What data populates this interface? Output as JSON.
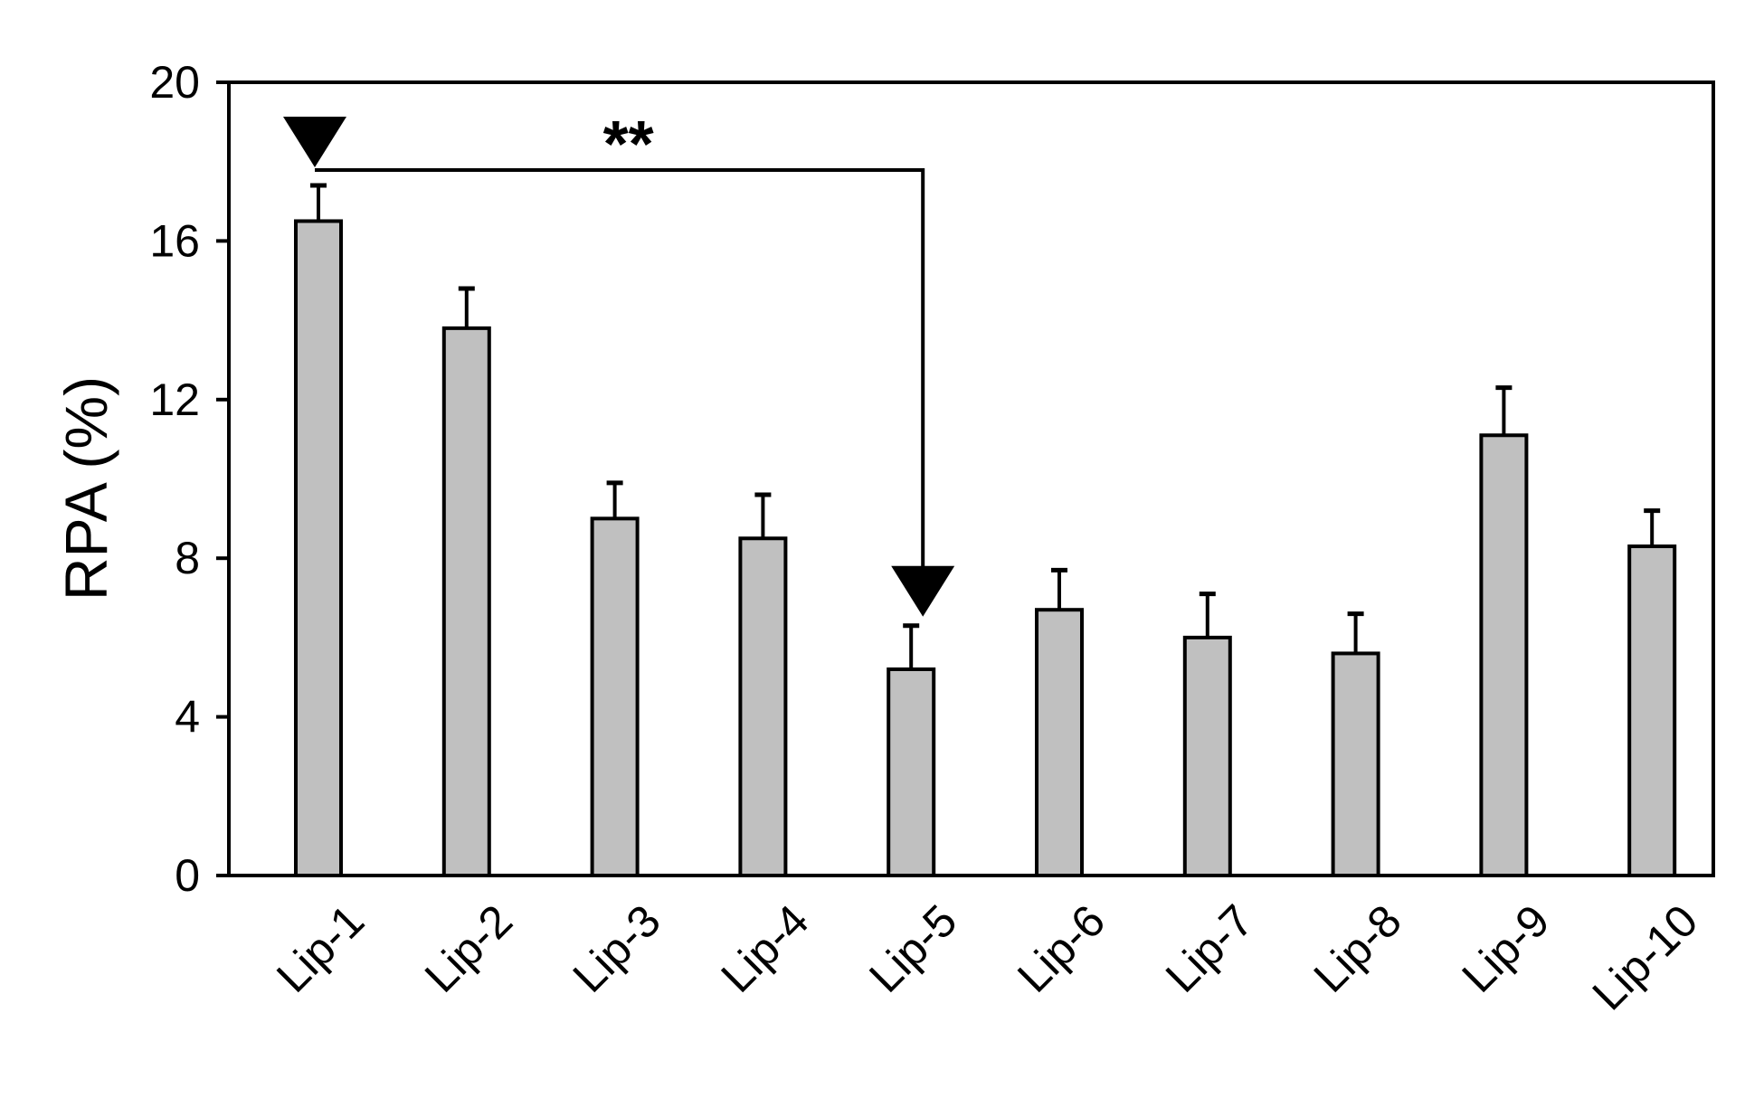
{
  "chart_data": {
    "type": "bar",
    "title": "",
    "xlabel": "",
    "ylabel": "RPA (%)",
    "ylim": [
      0,
      20
    ],
    "yticks": [
      "0",
      "4",
      "8",
      "12",
      "16",
      "20"
    ],
    "grid": false,
    "categories": [
      "Lip-1",
      "Lip-2",
      "Lip-3",
      "Lip-4",
      "Lip-5",
      "Lip-6",
      "Lip-7",
      "Lip-8",
      "Lip-9",
      "Lip-10"
    ],
    "values": [
      16.5,
      13.8,
      9.0,
      8.5,
      5.2,
      6.7,
      6.0,
      5.6,
      11.1,
      8.3
    ],
    "errors": [
      0.9,
      1.0,
      0.9,
      1.1,
      1.1,
      1.0,
      1.1,
      1.0,
      1.2,
      0.9
    ],
    "significance": {
      "from": "Lip-1",
      "to": "Lip-5",
      "label": "**"
    },
    "markers": [
      {
        "category": "Lip-1",
        "symbol": "filled-down-triangle"
      },
      {
        "category": "Lip-5",
        "symbol": "filled-down-triangle"
      }
    ],
    "colors": {
      "bar_fill": "#c0c0c0",
      "bar_stroke": "#000000",
      "marker": "#000000"
    }
  }
}
